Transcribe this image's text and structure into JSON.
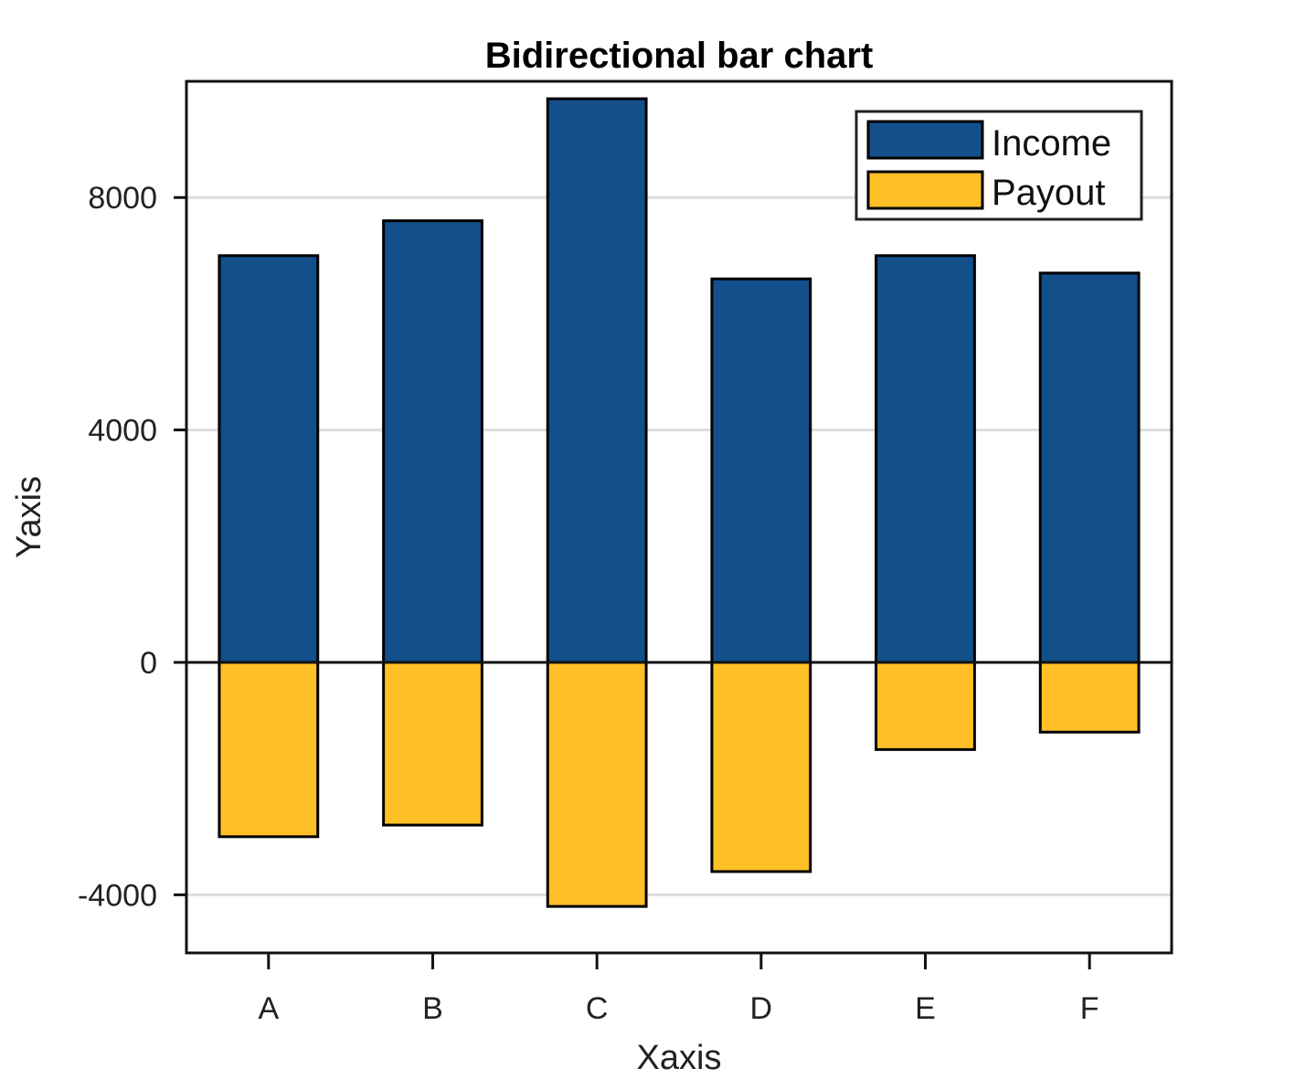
{
  "chart_data": {
    "type": "bar",
    "title": "Bidirectional bar chart",
    "xlabel": "Xaxis",
    "ylabel": "Yaxis",
    "categories": [
      "A",
      "B",
      "C",
      "D",
      "E",
      "F"
    ],
    "series": [
      {
        "name": "Income",
        "color": "#134f8a",
        "values": [
          7000,
          7600,
          9700,
          6600,
          7000,
          6700
        ]
      },
      {
        "name": "Payout",
        "color": "#ffc027",
        "values": [
          -3000,
          -2800,
          -4200,
          -3600,
          -1500,
          -1200
        ]
      }
    ],
    "ylim": [
      -5000,
      10000
    ],
    "yticks": [
      -4000,
      0,
      4000,
      8000
    ],
    "ytick_labels": [
      "-4000",
      "0",
      "4000",
      "8000"
    ],
    "grid": "horizontal",
    "legend_position": "top-right"
  }
}
